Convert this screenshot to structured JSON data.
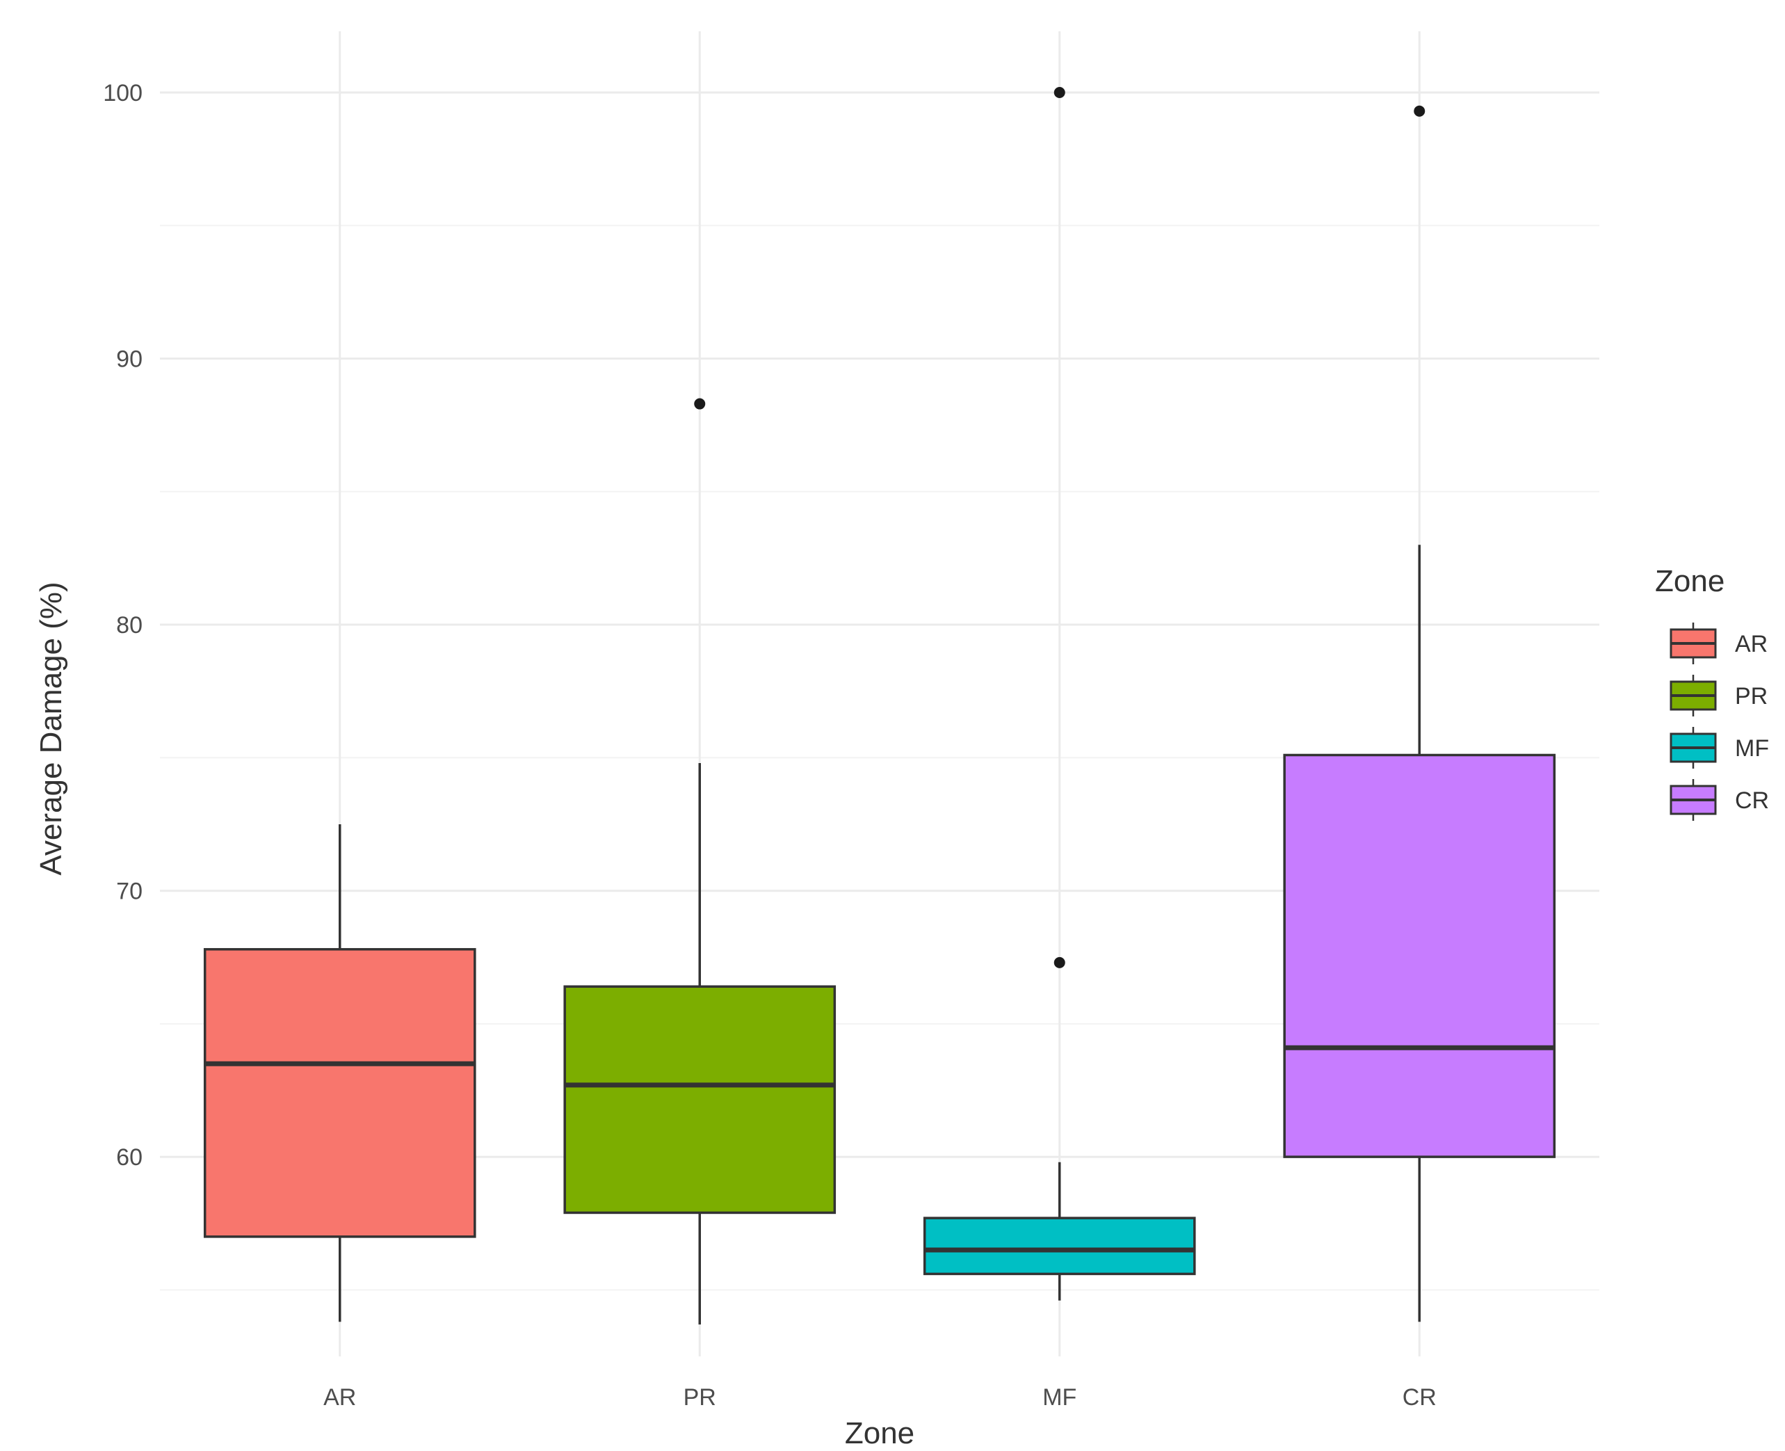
{
  "chart_data": {
    "type": "boxplot",
    "xlabel": "Zone",
    "ylabel": "Average Damage (%)",
    "categories": [
      "AR",
      "PR",
      "MF",
      "CR"
    ],
    "y_ticks": [
      60,
      70,
      80,
      90,
      100
    ],
    "ylim": [
      52.5,
      102.3
    ],
    "grid": true,
    "legend": {
      "title": "Zone",
      "placement": "right",
      "entries": [
        "AR",
        "PR",
        "MF",
        "CR"
      ]
    },
    "colors": {
      "AR": "#F8766D",
      "PR": "#7CAE00",
      "MF": "#00BFC4",
      "CR": "#C77CFF"
    },
    "boxes": [
      {
        "name": "AR",
        "whisker_low": 53.8,
        "q1": 57.0,
        "median": 63.5,
        "q3": 67.8,
        "whisker_high": 72.5,
        "outliers": []
      },
      {
        "name": "PR",
        "whisker_low": 53.7,
        "q1": 57.9,
        "median": 62.7,
        "q3": 66.4,
        "whisker_high": 74.8,
        "outliers": [
          88.3
        ]
      },
      {
        "name": "MF",
        "whisker_low": 54.6,
        "q1": 55.6,
        "median": 56.5,
        "q3": 57.7,
        "whisker_high": 59.8,
        "outliers": [
          67.3,
          100.0
        ]
      },
      {
        "name": "CR",
        "whisker_low": 53.8,
        "q1": 60.0,
        "median": 64.1,
        "q3": 75.1,
        "whisker_high": 83.0,
        "outliers": [
          99.3
        ]
      }
    ]
  }
}
